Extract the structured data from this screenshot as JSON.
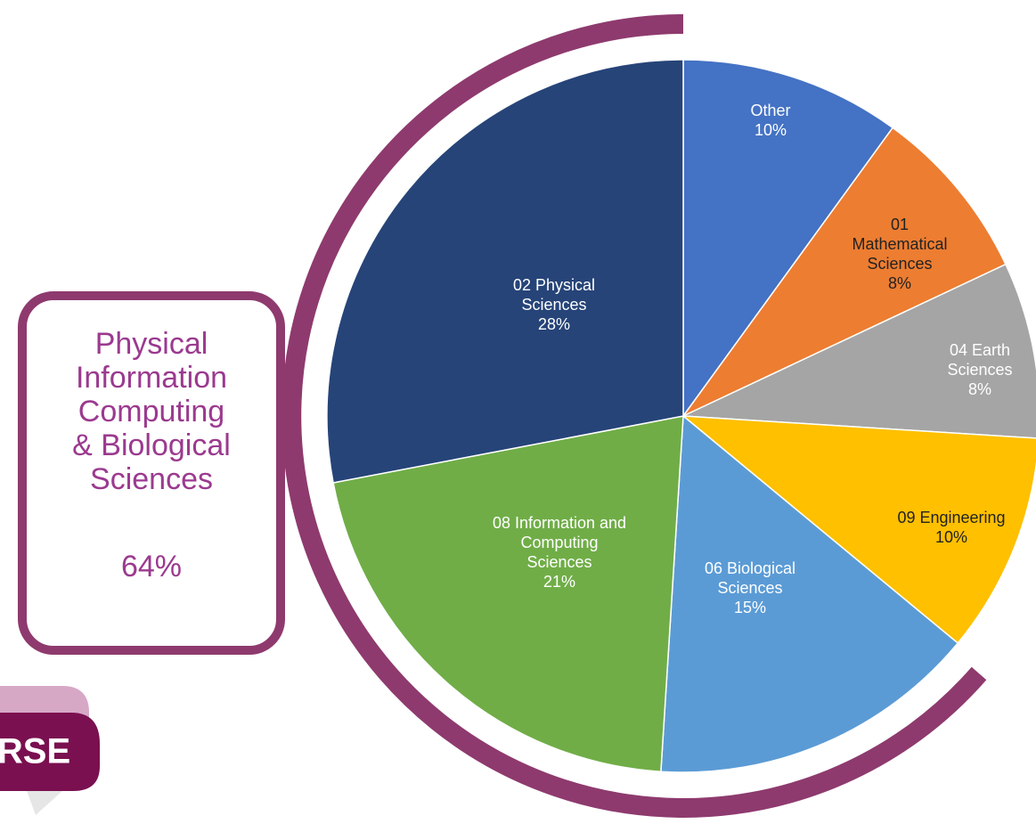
{
  "chart_data": {
    "type": "pie",
    "categories": [
      "Other",
      "01 Mathematical Sciences",
      "04 Earth Sciences",
      "09 Engineering",
      "06 Biological Sciences",
      "08 Information and Computing Sciences",
      "02 Physical Sciences"
    ],
    "values": [
      10,
      8,
      8,
      10,
      15,
      21,
      28
    ],
    "value_labels": [
      "10%",
      "8%",
      "8%",
      "10%",
      "15%",
      "21%",
      "28%"
    ],
    "colors": [
      "#4472c4",
      "#ed7d31",
      "#a5a5a5",
      "#ffc000",
      "#5b9bd5",
      "#70ad47",
      "#264478"
    ],
    "annotation": [
      "Physical",
      "Information",
      "Computing",
      "& Biological",
      "Sciences"
    ],
    "annotation_value": "64%",
    "logo": "RSE"
  }
}
